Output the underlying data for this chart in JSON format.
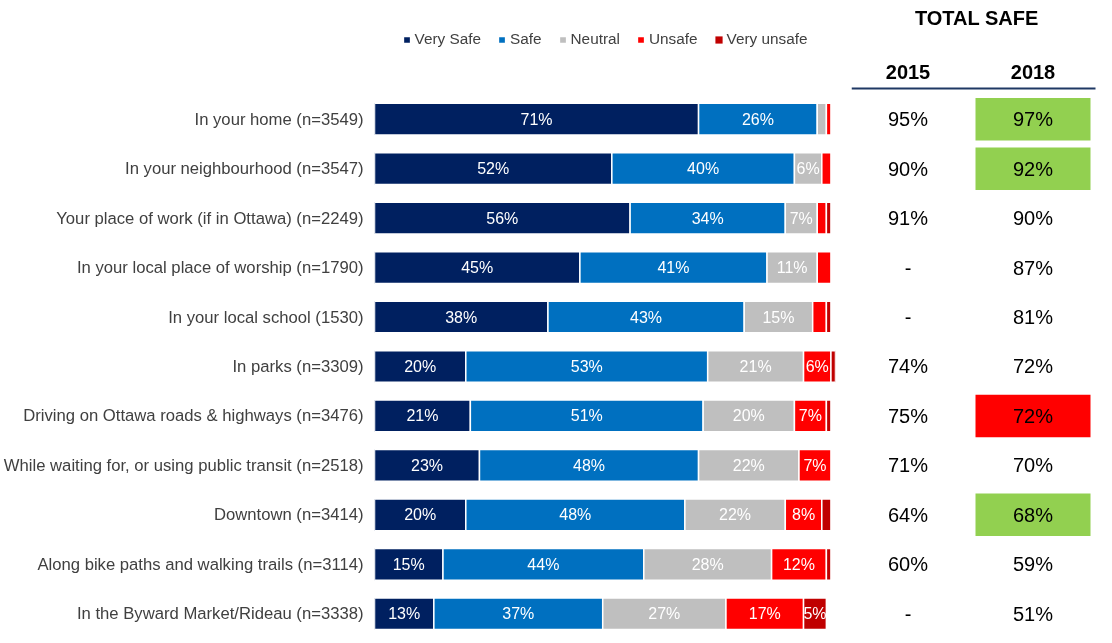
{
  "chart_data": [
    {
      "type": "bar",
      "orientation": "horizontal",
      "stacked": true,
      "legend": "top",
      "categories": [
        "In your home (n=3549)",
        "In your neighbourhood (n=3547)",
        "Your place of work (if in Ottawa) (n=2249)",
        "In your local place of worship (n=1790)",
        "In your local school (1530)",
        "In parks (n=3309)",
        "Driving on Ottawa roads & highways (n=3476)",
        "While waiting for, or using public transit (n=2518)",
        "Downtown (n=3414)",
        "Along bike paths and walking trails (n=3114)",
        "In the Byward Market/Rideau (n=3338)"
      ],
      "series": [
        {
          "name": "Very Safe",
          "color": "#002060",
          "values": [
            71,
            52,
            56,
            45,
            38,
            20,
            21,
            23,
            20,
            15,
            13
          ],
          "value_labels": [
            "71%",
            "52%",
            "56%",
            "45%",
            "38%",
            "20%",
            "21%",
            "23%",
            "20%",
            "15%",
            "13%"
          ]
        },
        {
          "name": "Safe",
          "color": "#0070c0",
          "values": [
            26,
            40,
            34,
            41,
            43,
            53,
            51,
            48,
            48,
            44,
            37
          ],
          "value_labels": [
            "26%",
            "40%",
            "34%",
            "41%",
            "43%",
            "53%",
            "51%",
            "48%",
            "48%",
            "44%",
            "37%"
          ]
        },
        {
          "name": "Neutral",
          "color": "#bfbfbf",
          "values": [
            2,
            6,
            7,
            11,
            15,
            21,
            20,
            22,
            22,
            28,
            27
          ],
          "value_labels": [
            null,
            "6%",
            "7%",
            "11%",
            "15%",
            "21%",
            "20%",
            "22%",
            "22%",
            "28%",
            "27%"
          ]
        },
        {
          "name": "Unsafe",
          "color": "#ff0000",
          "values": [
            1,
            2,
            2,
            3,
            3,
            6,
            7,
            7,
            8,
            12,
            17
          ],
          "value_labels": [
            null,
            null,
            null,
            null,
            null,
            "6%",
            "7%",
            "7%",
            "8%",
            "12%",
            "17%"
          ]
        },
        {
          "name": "Very unsafe",
          "color": "#c00000",
          "values": [
            0,
            0,
            1,
            0,
            1,
            1,
            1,
            0,
            2,
            1,
            5
          ],
          "value_labels": [
            null,
            null,
            null,
            null,
            null,
            null,
            null,
            null,
            null,
            null,
            "5%"
          ]
        }
      ]
    },
    {
      "type": "heatmap",
      "title": "TOTAL SAFE",
      "categories": [
        "2015",
        "2018"
      ],
      "y_categories": [
        null,
        null,
        null,
        null,
        null,
        null,
        null,
        null,
        null,
        null,
        null
      ],
      "cells": [
        [
          95,
          97
        ],
        [
          90,
          92
        ],
        [
          91,
          90
        ],
        [
          null,
          87
        ],
        [
          null,
          81
        ],
        [
          74,
          72
        ],
        [
          75,
          72
        ],
        [
          71,
          70
        ],
        [
          64,
          68
        ],
        [
          60,
          59
        ],
        [
          null,
          51
        ]
      ],
      "cell_labels": [
        [
          "95%",
          "97%"
        ],
        [
          "90%",
          "92%"
        ],
        [
          "91%",
          "90%"
        ],
        [
          "-",
          "87%"
        ],
        [
          "-",
          "81%"
        ],
        [
          "74%",
          "72%"
        ],
        [
          "75%",
          "72%"
        ],
        [
          "71%",
          "70%"
        ],
        [
          "64%",
          "68%"
        ],
        [
          "60%",
          "59%"
        ],
        [
          "-",
          "51%"
        ]
      ],
      "colors": [
        [
          null,
          "#92d050"
        ],
        [
          null,
          "#92d050"
        ],
        [
          null,
          null
        ],
        [
          null,
          null
        ],
        [
          null,
          null
        ],
        [
          null,
          null
        ],
        [
          null,
          "#ff0000"
        ],
        [
          null,
          null
        ],
        [
          null,
          "#92d050"
        ],
        [
          null,
          null
        ],
        [
          null,
          null
        ]
      ]
    }
  ]
}
